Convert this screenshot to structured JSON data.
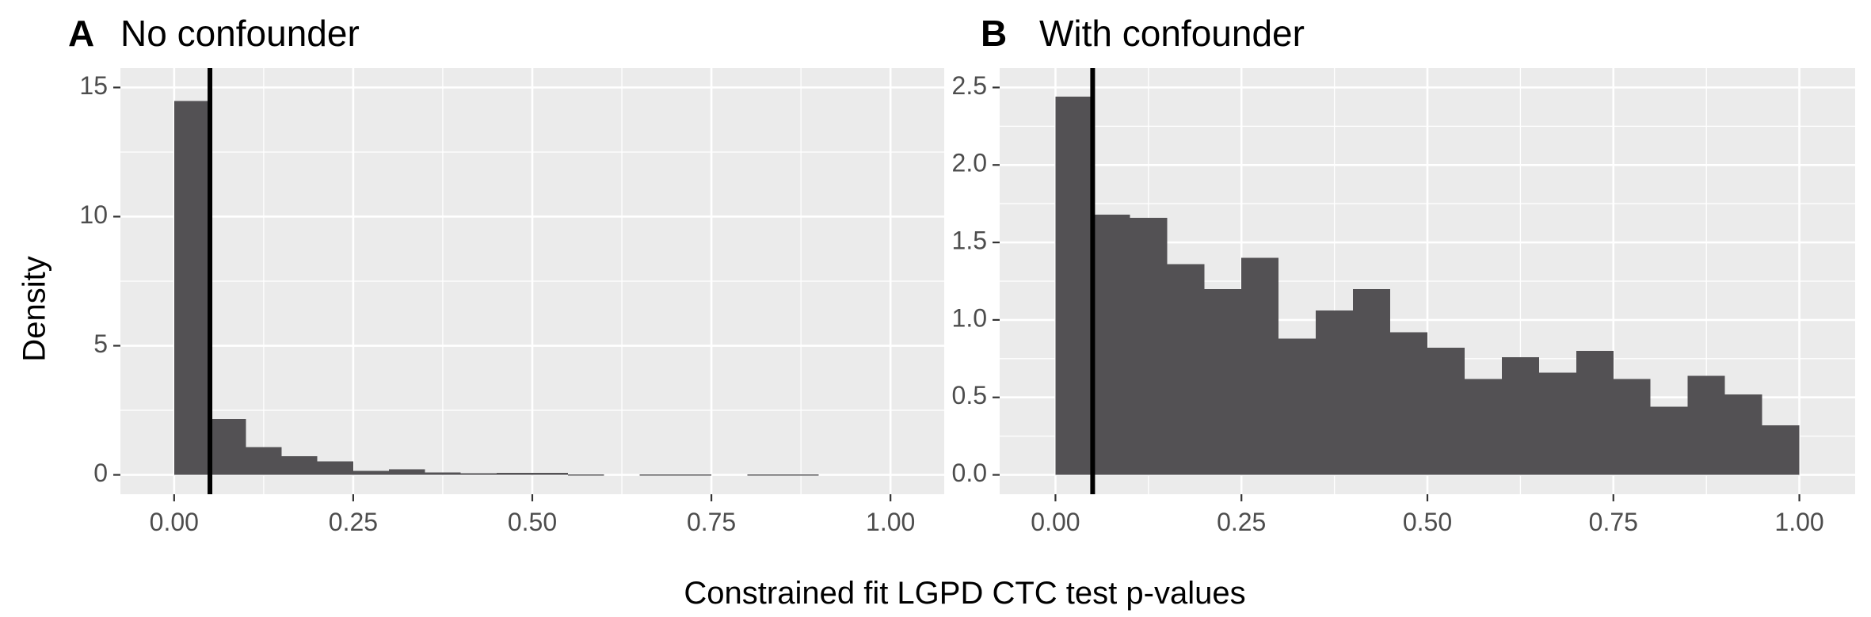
{
  "figure": {
    "ylabel": "Density",
    "xlabel": "Constrained fit LGPD CTC test p-values"
  },
  "chart_data": [
    {
      "type": "bar",
      "panel_tag": "A",
      "title": "No confounder",
      "xlim": [
        0,
        1
      ],
      "ylim": [
        0,
        15
      ],
      "x_ticks": [
        0,
        0.25,
        0.5,
        0.75,
        1
      ],
      "x_tick_labels": [
        "0.00",
        "0.25",
        "0.50",
        "0.75",
        "1.00"
      ],
      "y_ticks": [
        0,
        5,
        10,
        15
      ],
      "y_tick_labels": [
        "0",
        "5",
        "10",
        "15"
      ],
      "bin_width": 0.05,
      "bin_starts": [
        0,
        0.05,
        0.1,
        0.15,
        0.2,
        0.25,
        0.3,
        0.35,
        0.4,
        0.45,
        0.5,
        0.55,
        0.6,
        0.65,
        0.7,
        0.75,
        0.8,
        0.85,
        0.9,
        0.95
      ],
      "values": [
        14.48,
        2.16,
        1.08,
        0.72,
        0.52,
        0.16,
        0.22,
        0.1,
        0.06,
        0.08,
        0.08,
        0.02,
        0,
        0.02,
        0.02,
        0,
        0.02,
        0.02,
        0,
        0
      ],
      "vline": 0.05,
      "grid": true,
      "colors": {
        "bar": "#535154",
        "panel_bg": "#EBEBEB",
        "grid": "#FFFFFF",
        "vline": "#000000",
        "text": "#4D4D4D"
      }
    },
    {
      "type": "bar",
      "panel_tag": "B",
      "title": "With confounder",
      "xlim": [
        0,
        1
      ],
      "ylim": [
        0,
        2.5
      ],
      "x_ticks": [
        0,
        0.25,
        0.5,
        0.75,
        1
      ],
      "x_tick_labels": [
        "0.00",
        "0.25",
        "0.50",
        "0.75",
        "1.00"
      ],
      "y_ticks": [
        0,
        0.5,
        1,
        1.5,
        2,
        2.5
      ],
      "y_tick_labels": [
        "0.0",
        "0.5",
        "1.0",
        "1.5",
        "2.0",
        "2.5"
      ],
      "bin_width": 0.05,
      "bin_starts": [
        0,
        0.05,
        0.1,
        0.15,
        0.2,
        0.25,
        0.3,
        0.35,
        0.4,
        0.45,
        0.5,
        0.55,
        0.6,
        0.65,
        0.7,
        0.75,
        0.8,
        0.85,
        0.9,
        0.95
      ],
      "values": [
        2.44,
        1.68,
        1.66,
        1.36,
        1.2,
        1.4,
        0.88,
        1.06,
        1.2,
        0.92,
        0.82,
        0.62,
        0.76,
        0.66,
        0.8,
        0.62,
        0.44,
        0.64,
        0.52,
        0.32
      ],
      "vline": 0.05,
      "grid": true,
      "colors": {
        "bar": "#535154",
        "panel_bg": "#EBEBEB",
        "grid": "#FFFFFF",
        "vline": "#000000",
        "text": "#4D4D4D"
      }
    }
  ]
}
